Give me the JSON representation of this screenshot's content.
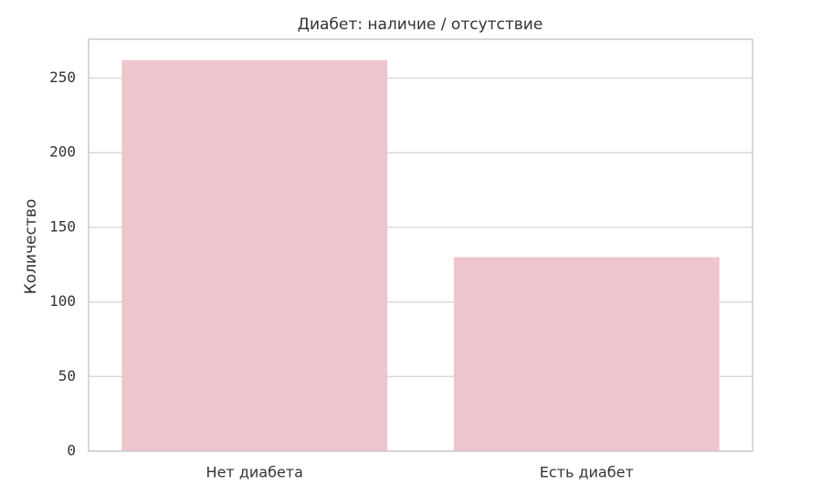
{
  "chart_data": {
    "type": "bar",
    "title": "Диабет: наличие / отсутствие",
    "y_label": "Количество",
    "categories": [
      "Нет диабета",
      "Есть диабет"
    ],
    "values": [
      262,
      130
    ],
    "color": "#efc5cd",
    "ylim": [
      0,
      276
    ],
    "yticks": [
      0,
      50,
      100,
      150,
      200,
      250
    ],
    "grid": true
  }
}
